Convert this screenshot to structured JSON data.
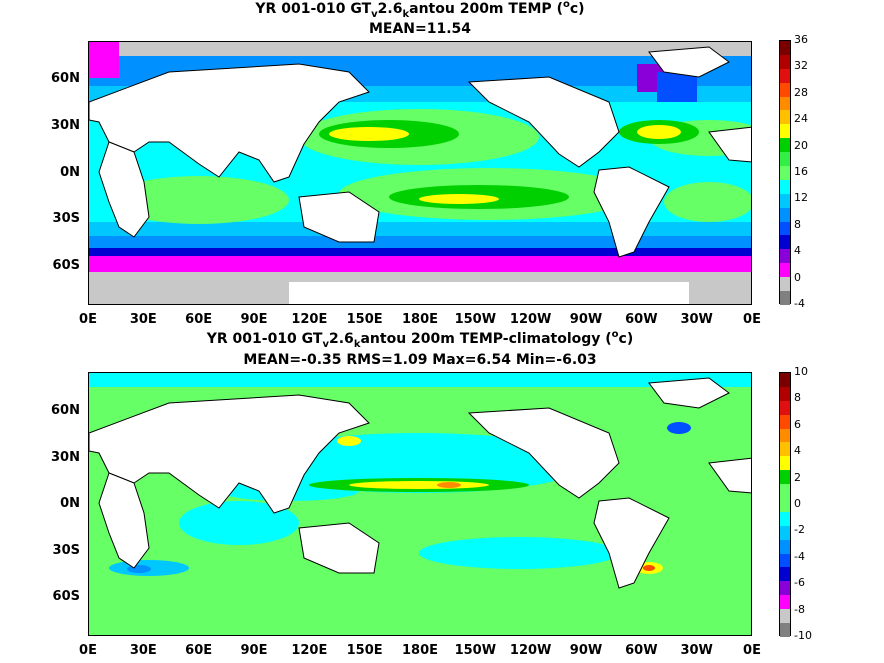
{
  "panels": [
    {
      "title_parts": {
        "pre": "YR 001-010 GT",
        "sub_v": "v",
        "mid": "2.6",
        "sub_k": "k",
        "post": "antou 200m TEMP (",
        "sup": "o",
        "unit_end": "c)"
      },
      "subtitle": "MEAN=11.54",
      "colorbar": {
        "ticks": [
          "36",
          "32",
          "28",
          "24",
          "20",
          "16",
          "12",
          "8",
          "4",
          "0",
          "-4"
        ],
        "colors": [
          "#7a0000",
          "#b00000",
          "#e01010",
          "#ff4a00",
          "#ff8c00",
          "#ffc000",
          "#ffff00",
          "#00d000",
          "#33ee44",
          "#66ff66",
          "#00ffff",
          "#00c8ff",
          "#0090ff",
          "#0050ff",
          "#0000d0",
          "#8a00d8",
          "#ff00ff",
          "#c8c8c8",
          "#808080"
        ]
      }
    },
    {
      "title_parts": {
        "pre": "YR 001-010 GT",
        "sub_v": "v",
        "mid": "2.6",
        "sub_k": "k",
        "post": "antou 200m TEMP-climatology (",
        "sup": "o",
        "unit_end": "c)"
      },
      "subtitle": "MEAN=-0.35   RMS=1.09   Max=6.54   Min=-6.03",
      "colorbar": {
        "ticks": [
          "10",
          "8",
          "6",
          "4",
          "2",
          "0",
          "-2",
          "-4",
          "-6",
          "-8",
          "-10"
        ],
        "colors": [
          "#7a0000",
          "#b00000",
          "#e01010",
          "#ff4a00",
          "#ff8c00",
          "#ffc000",
          "#ffff00",
          "#00d000",
          "#66ff66",
          "#66ff66",
          "#00ffff",
          "#00c8ff",
          "#0090ff",
          "#0050ff",
          "#0000d0",
          "#8a00d8",
          "#ff00ff",
          "#c8c8c8",
          "#808080"
        ]
      }
    }
  ],
  "lat_labels": [
    "60N",
    "30N",
    "0N",
    "30S",
    "60S"
  ],
  "lon_labels": [
    "0E",
    "30E",
    "60E",
    "90E",
    "120E",
    "150E",
    "180E",
    "150W",
    "120W",
    "90W",
    "60W",
    "30W",
    "0E"
  ],
  "ocean_colors": {
    "warm": "#00ff00",
    "hot": "#ffff00",
    "mid": "#66ff66",
    "cool": "#00ffff",
    "cold": "#00c8ff",
    "colder": "#0090ff",
    "frigid": "#0000d0",
    "polar": "#ff00ff",
    "ice": "#c8c8c8",
    "land": "#ffffff"
  }
}
